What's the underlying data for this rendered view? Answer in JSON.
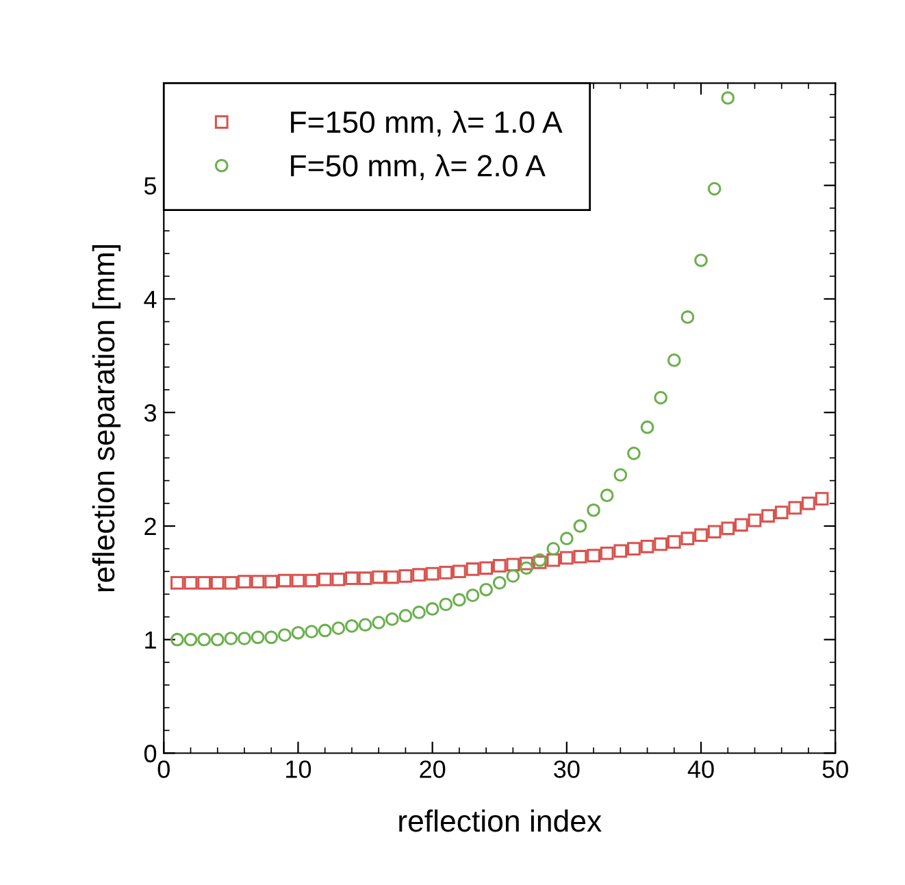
{
  "chart_data": {
    "type": "scatter",
    "xlabel": "reflection index",
    "ylabel": "reflection separation [mm]",
    "xlim": [
      0,
      50
    ],
    "xticks": [
      0,
      10,
      20,
      30,
      40,
      50
    ],
    "ylim": [
      0,
      5.9
    ],
    "yticks": [
      0,
      1,
      2,
      3,
      4,
      5
    ],
    "grid": false,
    "legend": "top left",
    "series": [
      {
        "name": "F=150 mm, λ= 1.0 A",
        "color": "#d9534f",
        "marker": "square",
        "x": [
          1,
          2,
          3,
          4,
          5,
          6,
          7,
          8,
          9,
          10,
          11,
          12,
          13,
          14,
          15,
          16,
          17,
          18,
          19,
          20,
          21,
          22,
          23,
          24,
          25,
          26,
          27,
          28,
          29,
          30,
          31,
          32,
          33,
          34,
          35,
          36,
          37,
          38,
          39,
          40,
          41,
          42,
          43,
          44,
          45,
          46,
          47,
          48,
          49
        ],
        "values": [
          1.5,
          1.5,
          1.5,
          1.5,
          1.5,
          1.51,
          1.51,
          1.51,
          1.52,
          1.52,
          1.52,
          1.53,
          1.53,
          1.54,
          1.54,
          1.55,
          1.55,
          1.56,
          1.57,
          1.58,
          1.59,
          1.6,
          1.62,
          1.63,
          1.65,
          1.66,
          1.67,
          1.68,
          1.7,
          1.72,
          1.73,
          1.74,
          1.76,
          1.78,
          1.8,
          1.82,
          1.84,
          1.86,
          1.89,
          1.92,
          1.95,
          1.98,
          2.01,
          2.05,
          2.09,
          2.12,
          2.16,
          2.2,
          2.24
        ]
      },
      {
        "name": "F=50 mm, λ= 2.0 A",
        "color": "#6ab04c",
        "marker": "circle",
        "x": [
          1,
          2,
          3,
          4,
          5,
          6,
          7,
          8,
          9,
          10,
          11,
          12,
          13,
          14,
          15,
          16,
          17,
          18,
          19,
          20,
          21,
          22,
          23,
          24,
          25,
          26,
          27,
          28,
          29,
          30,
          31,
          32,
          33,
          34,
          35,
          36,
          37,
          38,
          39,
          40,
          41,
          42
        ],
        "values": [
          1.0,
          1.0,
          1.0,
          1.0,
          1.01,
          1.01,
          1.02,
          1.02,
          1.04,
          1.06,
          1.07,
          1.08,
          1.1,
          1.12,
          1.13,
          1.15,
          1.18,
          1.21,
          1.24,
          1.27,
          1.31,
          1.35,
          1.39,
          1.44,
          1.5,
          1.56,
          1.63,
          1.7,
          1.8,
          1.89,
          2.0,
          2.14,
          2.27,
          2.45,
          2.64,
          2.87,
          3.13,
          3.46,
          3.84,
          4.34,
          4.97,
          5.77
        ]
      }
    ]
  }
}
